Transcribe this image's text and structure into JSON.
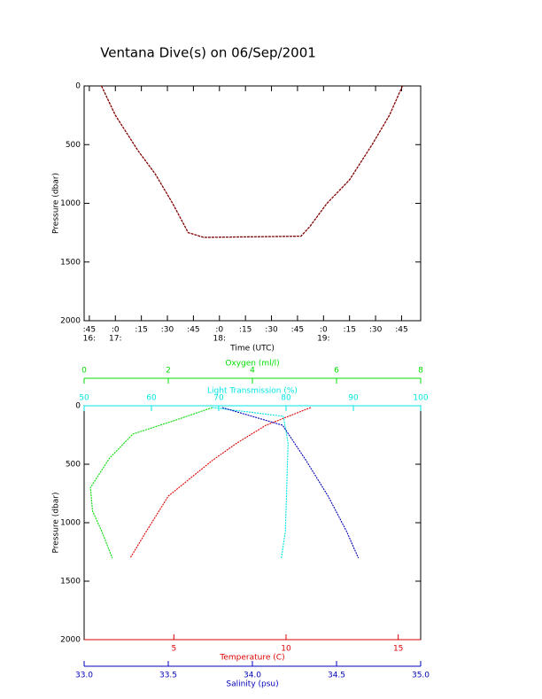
{
  "chart_data": [
    {
      "type": "line",
      "title": "Ventana Dive(s) on 06/Sep/2001",
      "xlabel": "Time (UTC)",
      "ylabel": "Pressure (dbar)",
      "color": "#800000",
      "x": [
        1012,
        1020,
        1033,
        1043,
        1053,
        1062,
        1071,
        1100,
        1127,
        1132,
        1142,
        1155,
        1168,
        1178,
        1185.5
      ],
      "values": [
        0,
        250,
        550,
        750,
        1000,
        1250,
        1290,
        1285,
        1280,
        1200,
        1000,
        800,
        500,
        250,
        0
      ],
      "xlim": [
        1002,
        1196
      ],
      "xticks": [
        {
          "value": 1005,
          "label": ":45"
        },
        {
          "value": 1020,
          "label": ":0"
        },
        {
          "value": 1035,
          "label": ":15"
        },
        {
          "value": 1050,
          "label": ":30"
        },
        {
          "value": 1065,
          "label": ":45"
        },
        {
          "value": 1080,
          "label": ":0"
        },
        {
          "value": 1095,
          "label": ":15"
        },
        {
          "value": 1110,
          "label": ":30"
        },
        {
          "value": 1125,
          "label": ":45"
        },
        {
          "value": 1140,
          "label": ":0"
        },
        {
          "value": 1155,
          "label": ":15"
        },
        {
          "value": 1170,
          "label": ":30"
        },
        {
          "value": 1185,
          "label": ":45"
        }
      ],
      "xticks_hours": [
        {
          "value": 1005,
          "label": "16:"
        },
        {
          "value": 1020,
          "label": "17:"
        },
        {
          "value": 1080,
          "label": "18:"
        },
        {
          "value": 1140,
          "label": "19:"
        }
      ],
      "ylim": [
        0,
        2000
      ],
      "yticks": [
        0,
        500,
        1000,
        1500,
        2000
      ],
      "y_inverted": true
    },
    {
      "type": "profile",
      "ylabel": "Pressure (dbar)",
      "ylim": [
        0,
        2000
      ],
      "yticks": [
        0,
        500,
        1000,
        1500,
        2000
      ],
      "y_inverted": true,
      "axes": {
        "oxygen": {
          "label": "Oxygen (ml/l)",
          "color": "#00dd00",
          "lim": [
            0,
            8
          ],
          "ticks": [
            0,
            2,
            4,
            6,
            8
          ]
        },
        "light": {
          "label": "Light Transmission (%)",
          "color": "#00e5e5",
          "lim": [
            50,
            100
          ],
          "ticks": [
            50,
            60,
            70,
            80,
            90,
            100
          ]
        },
        "temperature": {
          "label": "Temperature (C)",
          "color": "#dd0000",
          "lim": [
            1,
            16
          ],
          "ticks": [
            5,
            10,
            15
          ]
        },
        "salinity": {
          "label": "Salinity (psu)",
          "color": "#0000bb",
          "lim": [
            33,
            35
          ],
          "ticks": [
            {
              "value": 33,
              "label": "33.0"
            },
            {
              "value": 33.5,
              "label": "33.5"
            },
            {
              "value": 34,
              "label": "34.0"
            },
            {
              "value": 34.5,
              "label": "34.5"
            },
            {
              "value": 35,
              "label": "35.0"
            }
          ]
        }
      },
      "series": [
        {
          "axis": "oxygen",
          "x": [
            3.05,
            2.2,
            1.16,
            0.6,
            0.15,
            0.2,
            0.42,
            0.67
          ],
          "pressure": [
            15,
            120,
            242,
            450,
            700,
            900,
            1075,
            1303
          ]
        },
        {
          "axis": "temperature",
          "x": [
            11.1,
            9.1,
            7.8,
            6.7,
            4.75,
            3.77,
            3.05
          ],
          "pressure": [
            15,
            167,
            320,
            470,
            773,
            1075,
            1303
          ]
        },
        {
          "axis": "light",
          "x": [
            69,
            79.6,
            80.3,
            80.1,
            79.9,
            79.3
          ],
          "pressure": [
            15,
            90,
            320,
            700,
            1075,
            1303
          ]
        },
        {
          "axis": "salinity",
          "x": [
            33.82,
            34.18,
            34.32,
            34.45,
            34.56,
            34.63
          ],
          "pressure": [
            15,
            167,
            470,
            773,
            1075,
            1303
          ]
        }
      ]
    }
  ]
}
